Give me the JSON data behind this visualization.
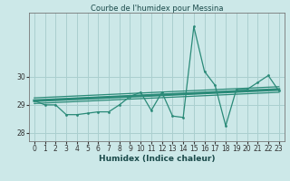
{
  "x": [
    0,
    1,
    2,
    3,
    4,
    5,
    6,
    7,
    8,
    9,
    10,
    11,
    12,
    13,
    14,
    15,
    16,
    17,
    18,
    19,
    20,
    21,
    22,
    23
  ],
  "y_humidex": [
    29.15,
    29.0,
    29.0,
    28.65,
    28.65,
    28.7,
    28.75,
    28.75,
    29.0,
    29.3,
    29.45,
    28.8,
    29.45,
    28.6,
    28.55,
    31.8,
    30.2,
    29.7,
    28.25,
    29.55,
    29.55,
    29.8,
    30.05,
    29.5
  ],
  "upper_y0": 29.25,
  "upper_y1": 29.65,
  "lower_y0": 29.05,
  "lower_y1": 29.45,
  "line_color": "#2a8a78",
  "bg_color": "#cce8e8",
  "grid_color": "#aacfcf",
  "xlabel": "Humidex (Indice chaleur)",
  "title": "Courbe de l'humidex pour Messina",
  "ylim": [
    27.7,
    32.3
  ],
  "xlim": [
    -0.5,
    23.5
  ],
  "yticks": [
    28,
    29,
    30
  ],
  "xticks": [
    0,
    1,
    2,
    3,
    4,
    5,
    6,
    7,
    8,
    9,
    10,
    11,
    12,
    13,
    14,
    15,
    16,
    17,
    18,
    19,
    20,
    21,
    22,
    23
  ]
}
